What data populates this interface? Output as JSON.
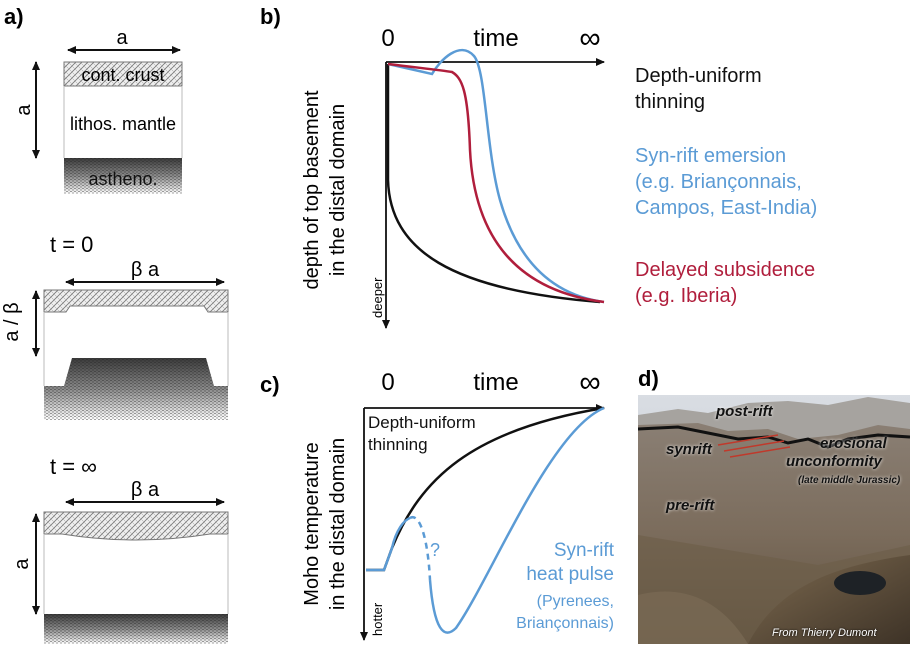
{
  "panel_a": {
    "label": "a)",
    "top_width": "a",
    "side_thickness": "a",
    "crust": "cont. crust",
    "mantle": "lithos. mantle",
    "astheno": "astheno.",
    "t0_label": "t = 0",
    "t0_width": "β a",
    "t0_thickness": "a / β",
    "tinf_label": "t = ∞",
    "tinf_width": "β a",
    "tinf_thickness": "a"
  },
  "panel_b": {
    "label": "b)",
    "x_zero": "0",
    "x_label": "time",
    "x_inf": "∞",
    "y_label_1": "depth of top basement",
    "y_label_2": "in the distal domain",
    "deeper": "deeper",
    "legend": [
      {
        "line1": "Depth-uniform",
        "line2": "thinning",
        "line3": "",
        "color": "#111111"
      },
      {
        "line1": "Syn-rift emersion",
        "line2": "(e.g. Briançonnais,",
        "line3": "Campos, East-India)",
        "color": "#5b9bd5"
      },
      {
        "line1": "Delayed subsidence",
        "line2": "(e.g. Iberia)",
        "line3": "",
        "color": "#b01e3c"
      }
    ]
  },
  "panel_c": {
    "label": "c)",
    "x_zero": "0",
    "x_label": "time",
    "x_inf": "∞",
    "y_label_1": "Moho temperature",
    "y_label_2": "in the distal domain",
    "hotter": "hotter",
    "black_line1": "Depth-uniform",
    "black_line2": "thinning",
    "question": "?",
    "blue_line1": "Syn-rift",
    "blue_line2": "heat pulse",
    "blue_line3": "(Pyrenees,",
    "blue_line4": "Briançonnais)"
  },
  "panel_d": {
    "label": "d)",
    "post_rift": "post-rift",
    "synrift": "synrift",
    "erosional": "erosional",
    "unconformity": "unconformity",
    "age": "(late middle Jurassic)",
    "pre_rift": "pre-rift",
    "credit": "From Thierry Dumont"
  },
  "colors": {
    "blue": "#5b9bd5",
    "red": "#b01e3c",
    "black": "#111111"
  }
}
